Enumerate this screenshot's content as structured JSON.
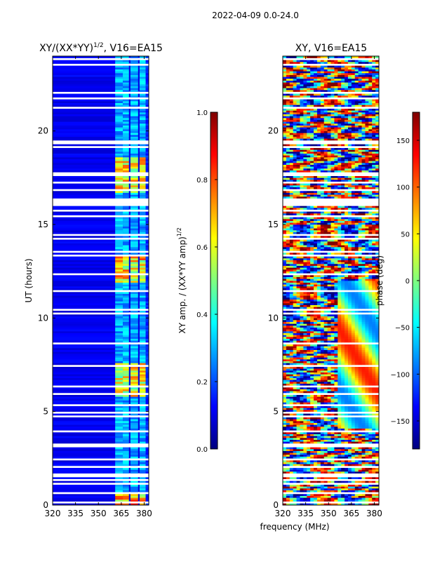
{
  "suptitle": "2022-04-09 0.0-24.0",
  "colors": {
    "jet": [
      "#00007f",
      "#0000ff",
      "#007fff",
      "#00ffff",
      "#7fff7f",
      "#ffff00",
      "#ff7f00",
      "#ff0000",
      "#7f0000"
    ],
    "frame": "#000000",
    "gap": "#ffffff"
  },
  "chart_data": [
    {
      "type": "heatmap",
      "title_main": "XY/(XX*YY)",
      "title_sup": "1/2",
      "title_suffix": ", V16=EA15",
      "xlabel": "",
      "ylabel": "UT (hours)",
      "xlim": [
        320,
        383
      ],
      "ylim": [
        0,
        24
      ],
      "xticks": [
        320,
        335,
        350,
        365,
        380
      ],
      "yticks": [
        0,
        5,
        10,
        15,
        20
      ],
      "colorbar": {
        "label_main": "XY amp. / (XX*YY amp)",
        "label_sup": "1/2",
        "range": [
          0.0,
          1.0
        ],
        "ticks": [
          0.0,
          0.2,
          0.4,
          0.6,
          0.8,
          1.0
        ],
        "tick_labels": [
          "0.0",
          "0.2",
          "0.4",
          "0.6",
          "0.8",
          "1.0"
        ]
      },
      "bright_band_mhz": [
        [
          361,
          366
        ],
        [
          366,
          370
        ],
        [
          371,
          376
        ],
        [
          377,
          381
        ]
      ]
    },
    {
      "type": "heatmap",
      "title_main": "XY, V16=EA15",
      "xlabel": "frequency (MHz)",
      "ylabel": "",
      "xlim": [
        320,
        383
      ],
      "ylim": [
        0,
        24
      ],
      "xticks": [
        320,
        335,
        350,
        365,
        380
      ],
      "yticks": [
        0,
        5,
        10,
        15,
        20
      ],
      "colorbar": {
        "label_main": "phase (deg)",
        "range": [
          -180,
          180
        ],
        "ticks": [
          150,
          100,
          50,
          0,
          -50,
          -100,
          -150
        ],
        "tick_labels": [
          "150",
          "100",
          "50",
          "0",
          "−50",
          "−100",
          "−150"
        ]
      }
    }
  ]
}
